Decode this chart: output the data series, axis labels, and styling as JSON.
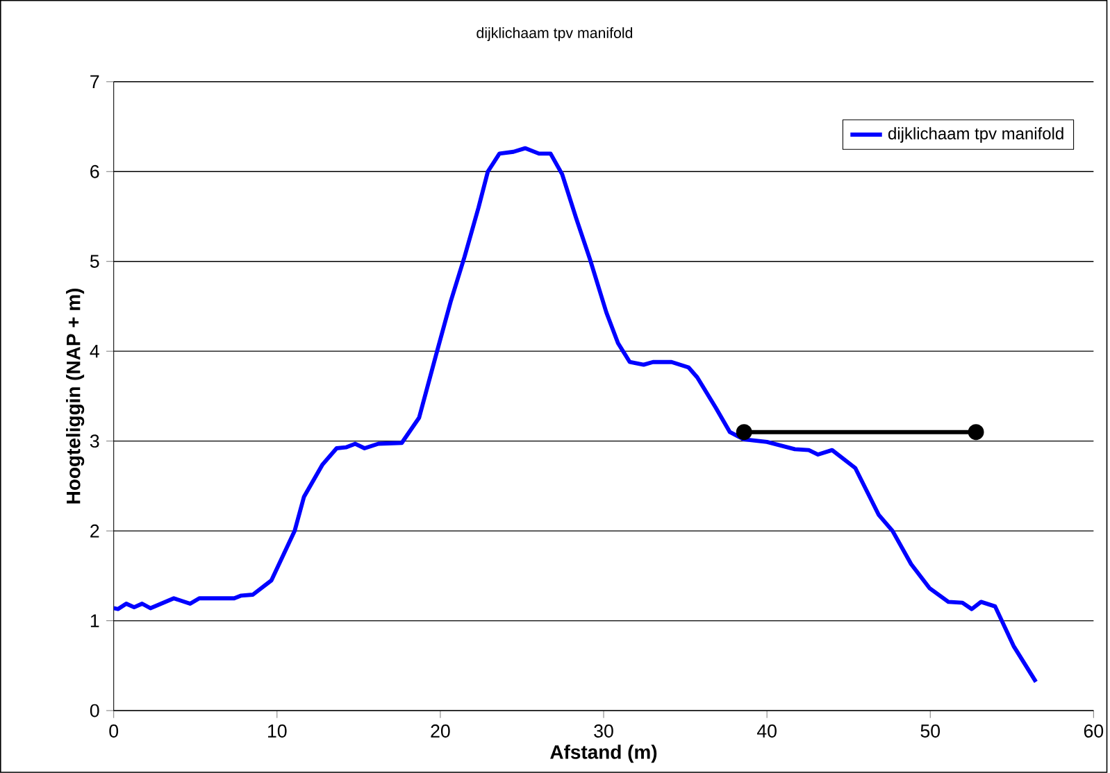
{
  "chart_data": {
    "type": "line",
    "title": "dijklichaam tpv manifold",
    "xlabel": "Afstand (m)",
    "ylabel": "Hoogteliggin (NAP + m)",
    "xlim": [
      0,
      60
    ],
    "xticks": [
      0,
      10,
      20,
      30,
      40,
      50,
      60
    ],
    "ylim": [
      0,
      7
    ],
    "yticks": [
      0,
      1,
      2,
      3,
      4,
      5,
      6,
      7
    ],
    "grid": "y",
    "legend": "top right",
    "marker": "none",
    "line_style": "solid",
    "series": [
      {
        "name": "dijklichaam tpv manifold",
        "color": "#0000ff",
        "x": [
          0,
          0.26,
          0.77,
          1.25,
          1.74,
          2.25,
          3.68,
          4.68,
          5.24,
          7.38,
          7.81,
          8.52,
          9.66,
          11.08,
          11.65,
          12.79,
          13.65,
          14.22,
          14.79,
          15.36,
          16.21,
          17.64,
          18.7,
          19.8,
          20.63,
          21.48,
          22.34,
          22.91,
          23.62,
          24.48,
          25.19,
          26.04,
          26.75,
          27.46,
          28.32,
          29.17,
          30.17,
          30.88,
          31.6,
          32.45,
          33.02,
          34.16,
          35.2,
          35.73,
          36.87,
          37.73,
          38.58,
          40.0,
          41.71,
          42.56,
          43.13,
          43.99,
          45.41,
          46.84,
          47.69,
          48.83,
          49.97,
          51.11,
          51.97,
          52.54,
          53.11,
          53.97,
          55.1,
          56.47
        ],
        "values": [
          1.14,
          1.13,
          1.19,
          1.15,
          1.19,
          1.14,
          1.25,
          1.19,
          1.25,
          1.25,
          1.28,
          1.29,
          1.45,
          2.0,
          2.38,
          2.74,
          2.92,
          2.93,
          2.97,
          2.92,
          2.97,
          2.98,
          3.26,
          4.0,
          4.55,
          5.05,
          5.6,
          6.0,
          6.2,
          6.22,
          6.26,
          6.2,
          6.2,
          5.97,
          5.48,
          5.02,
          4.43,
          4.09,
          3.88,
          3.85,
          3.88,
          3.88,
          3.82,
          3.71,
          3.37,
          3.1,
          3.02,
          2.99,
          2.91,
          2.9,
          2.85,
          2.9,
          2.7,
          2.18,
          2.0,
          1.63,
          1.36,
          1.21,
          1.2,
          1.13,
          1.21,
          1.16,
          0.72,
          0.32
        ]
      },
      {
        "color": "#000000",
        "marker": "circle",
        "x": [
          38.6,
          52.8
        ],
        "values": [
          3.1,
          3.1
        ]
      }
    ]
  }
}
